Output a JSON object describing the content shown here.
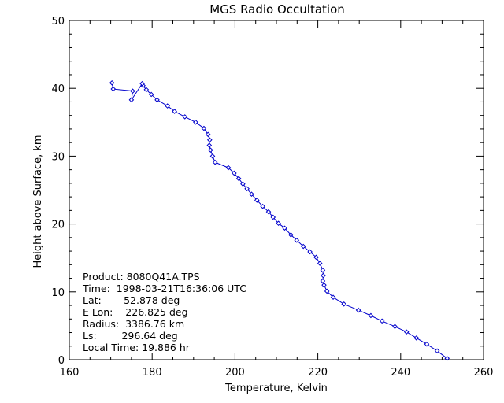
{
  "chart_data": {
    "type": "line",
    "title": "MGS Radio Occultation",
    "xlabel": "Temperature, Kelvin",
    "ylabel": "Height above Surface, km",
    "xlim": [
      160,
      260
    ],
    "ylim": [
      0,
      50
    ],
    "xticks": [
      "160",
      "180",
      "200",
      "220",
      "240",
      "260"
    ],
    "yticks": [
      "0",
      "10",
      "20",
      "30",
      "40",
      "50"
    ],
    "grid": false,
    "line_color": "#0000cc",
    "marker": "diamond",
    "series": [
      {
        "x": [
          251.2,
          248.8,
          246.3,
          243.8,
          241.4,
          238.6,
          235.5,
          232.8,
          229.8,
          226.3,
          223.7,
          222.2,
          221.5,
          221.2,
          221.3,
          221.2,
          220.5,
          219.6,
          218.1,
          216.5,
          214.9,
          213.5,
          212.0,
          210.5,
          209.2,
          208.1,
          206.7,
          205.3,
          204.0,
          202.9,
          201.9,
          200.9,
          199.8,
          198.4,
          195.2,
          194.6,
          194.1,
          193.8,
          193.9,
          193.5,
          192.5,
          190.5,
          187.9,
          185.4,
          183.7,
          181.2,
          179.8,
          178.6,
          177.8,
          177.6,
          175.0,
          175.3,
          170.6,
          170.3
        ],
        "y": [
          0.2,
          1.3,
          2.3,
          3.2,
          4.1,
          4.9,
          5.7,
          6.5,
          7.3,
          8.2,
          9.2,
          10.1,
          11.0,
          11.6,
          12.4,
          13.2,
          14.2,
          15.1,
          15.9,
          16.7,
          17.6,
          18.4,
          19.4,
          20.1,
          21.0,
          21.8,
          22.6,
          23.5,
          24.4,
          25.2,
          25.9,
          26.7,
          27.5,
          28.3,
          29.1,
          30.0,
          30.9,
          31.6,
          32.4,
          33.2,
          34.1,
          35.0,
          35.8,
          36.6,
          37.4,
          38.3,
          39.1,
          39.8,
          40.4,
          40.7,
          38.3,
          39.6,
          39.9,
          40.8
        ]
      }
    ]
  },
  "info": {
    "product": "Product: 8080Q41A.TPS",
    "time": "Time:  1998-03-21T16:36:06 UTC",
    "lat": "Lat:      -52.878 deg",
    "elon": "E Lon:    226.825 deg",
    "radius": "Radius:  3386.76 km",
    "ls": "Ls:        296.64 deg",
    "local_time": "Local Time: 19.886 hr"
  }
}
